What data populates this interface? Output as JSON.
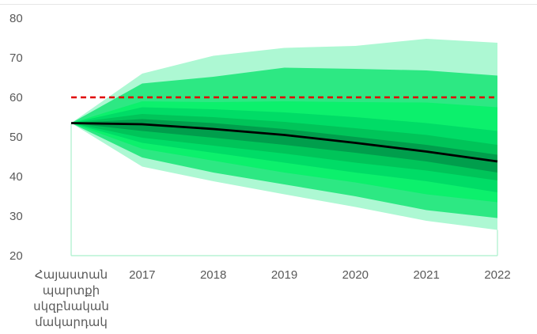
{
  "chart_data": {
    "type": "area",
    "title": "",
    "xlabel": "",
    "ylabel": "",
    "categories": [
      "Հայաստան պարտքի սկզբնական մակարդակ",
      "2017",
      "2018",
      "2019",
      "2020",
      "2021",
      "2022"
    ],
    "category_label_lines": [
      [
        "Հայաստան",
        "պարտքի",
        "սկզբնական",
        "մակարդակ"
      ],
      [
        "2017"
      ],
      [
        "2018"
      ],
      [
        "2019"
      ],
      [
        "2020"
      ],
      [
        "2021"
      ],
      [
        "2022"
      ]
    ],
    "ylim": [
      20,
      80
    ],
    "yticks": [
      20,
      30,
      40,
      50,
      60,
      70,
      80
    ],
    "grid": false,
    "legend": "none",
    "fan_bands": [
      {
        "color": "#adf8d3",
        "upper": [
          53.5,
          66.0,
          70.5,
          72.5,
          73.0,
          74.8,
          73.8
        ],
        "lower": [
          53.5,
          42.5,
          38.8,
          35.5,
          32.3,
          28.8,
          26.5
        ]
      },
      {
        "color": "#2de883",
        "upper": [
          53.5,
          63.5,
          65.2,
          67.5,
          67.2,
          66.8,
          65.5
        ],
        "lower": [
          53.5,
          44.8,
          41.0,
          38.0,
          35.0,
          31.5,
          29.5
        ]
      },
      {
        "color": "#0cf06c",
        "upper": [
          53.5,
          59.0,
          58.8,
          59.0,
          58.8,
          58.7,
          57.5
        ],
        "lower": [
          53.5,
          47.0,
          44.0,
          41.0,
          38.5,
          35.5,
          33.5
        ]
      },
      {
        "color": "#00dc66",
        "upper": [
          53.5,
          57.5,
          57.0,
          56.2,
          55.0,
          53.5,
          51.5
        ],
        "lower": [
          53.5,
          48.5,
          46.0,
          43.5,
          41.0,
          38.8,
          36.0
        ]
      },
      {
        "color": "#00c459",
        "upper": [
          53.5,
          55.8,
          55.0,
          53.8,
          52.2,
          50.5,
          48.0
        ],
        "lower": [
          53.5,
          49.8,
          47.8,
          45.8,
          43.5,
          41.5,
          39.0
        ]
      },
      {
        "color": "#009e4c",
        "upper": [
          53.5,
          54.5,
          53.5,
          52.0,
          50.0,
          48.0,
          45.5
        ],
        "lower": [
          53.5,
          51.5,
          49.8,
          48.0,
          46.0,
          43.8,
          41.0
        ]
      }
    ],
    "series": [
      {
        "values": [
          53.5,
          53.2,
          52.0,
          50.5,
          48.5,
          46.3,
          43.8
        ],
        "color": "#000000",
        "style": "solid"
      },
      {
        "values": [
          60,
          60,
          60,
          60,
          60,
          60,
          60
        ],
        "color": "#e00000",
        "style": "dashed"
      }
    ]
  },
  "colors": {
    "axis": "#a9f0cc",
    "tick_text": "#595959",
    "top_border": "#e6e6e6"
  }
}
